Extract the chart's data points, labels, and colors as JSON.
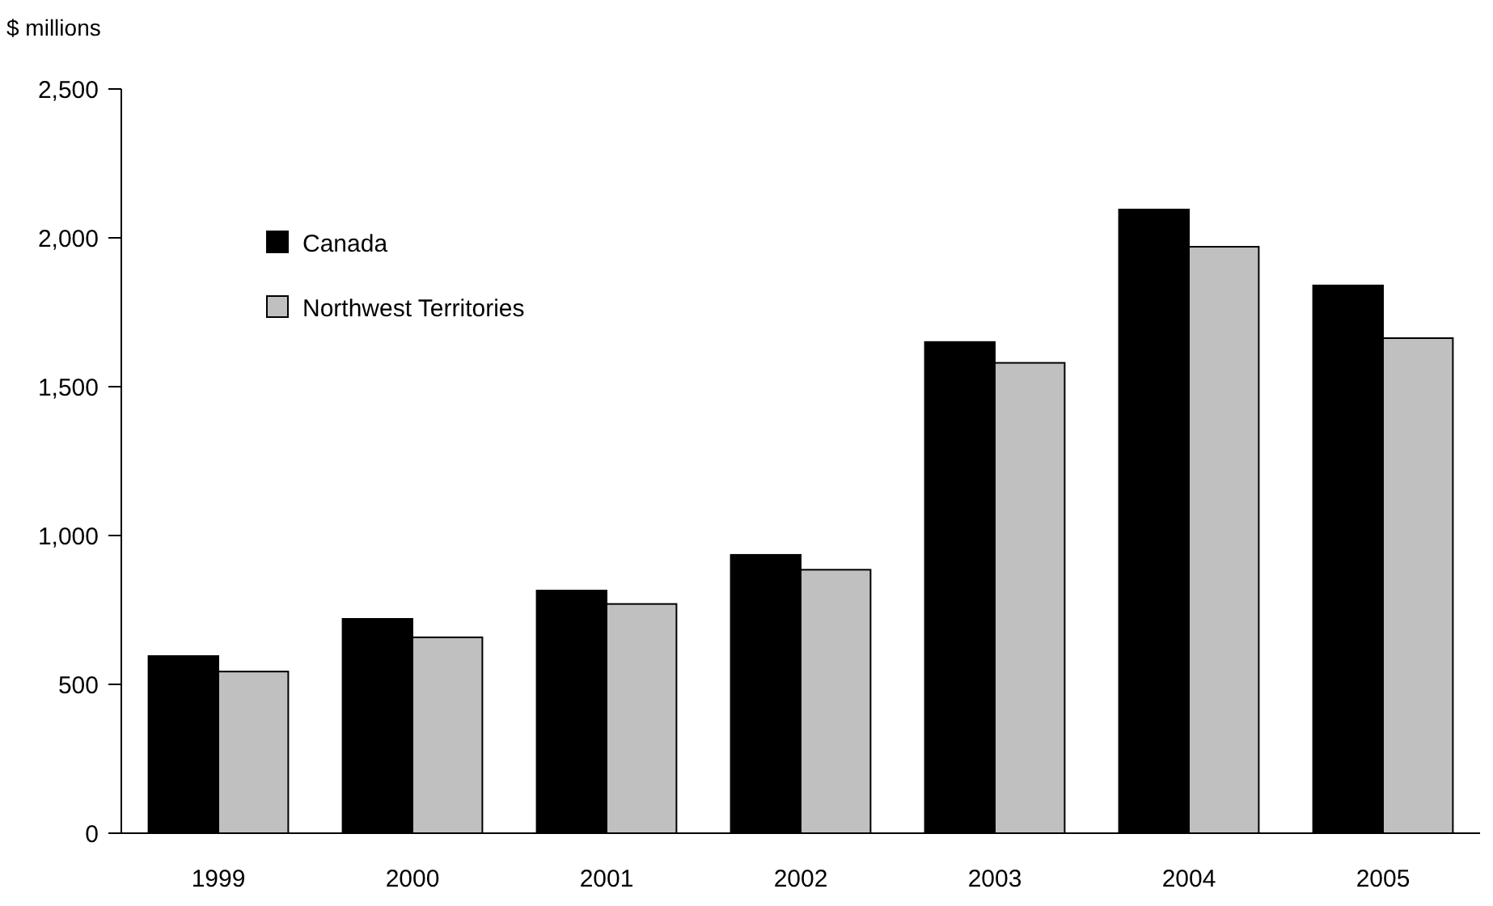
{
  "chart_data": {
    "type": "bar",
    "ylabel": "$ millions",
    "categories": [
      "1999",
      "2000",
      "2001",
      "2002",
      "2003",
      "2004",
      "2005"
    ],
    "series": [
      {
        "name": "Canada",
        "color": "#000000",
        "values": [
          595,
          720,
          815,
          935,
          1650,
          2095,
          1840
        ]
      },
      {
        "name": "Northwest Territories",
        "color": "#c0c0c0",
        "values": [
          543,
          658,
          770,
          885,
          1580,
          1970,
          1663
        ]
      }
    ],
    "ylim": [
      0,
      2500
    ],
    "yticks": [
      0,
      {
        "value": 500,
        "label": "500"
      },
      {
        "value": 1000,
        "label": "1,000"
      },
      {
        "value": 1500,
        "label": "1,500"
      },
      {
        "value": 2000,
        "label": "2,000"
      },
      {
        "value": 2500,
        "label": "2,500"
      }
    ],
    "grid": false,
    "legend": "top left"
  }
}
